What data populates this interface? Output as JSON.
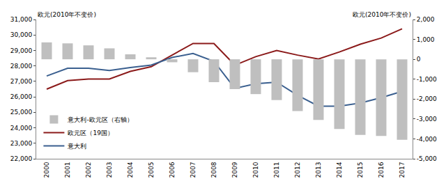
{
  "chart_data": {
    "type": "bar",
    "ylabel": "欧元(2010年不变价)",
    "y2label": "欧元(2010年不变价)",
    "categories": [
      "2000",
      "2001",
      "2002",
      "2003",
      "2004",
      "2005",
      "2006",
      "2007",
      "2008",
      "2009",
      "2010",
      "2011",
      "2012",
      "2013",
      "2014",
      "2015",
      "2016",
      "2017"
    ],
    "series": [
      {
        "name": "意大利-欧元区（右轴）",
        "type": "bar",
        "axis": "y2",
        "color": "#bfbfbf",
        "values": [
          850,
          800,
          700,
          550,
          250,
          100,
          -150,
          -650,
          -1150,
          -1500,
          -1750,
          -2050,
          -2600,
          -3050,
          -3500,
          -3800,
          -3850,
          -4050
        ]
      },
      {
        "name": "欧元区（19国）",
        "type": "line",
        "color": "#8b1a1a",
        "values": [
          26500,
          27050,
          27150,
          27150,
          27650,
          27950,
          28700,
          29450,
          29450,
          28050,
          28600,
          29000,
          28700,
          28450,
          28900,
          29400,
          29800,
          30400
        ]
      },
      {
        "name": "意大利",
        "type": "line",
        "color": "#3a5f8f",
        "values": [
          27350,
          27850,
          27850,
          27700,
          27900,
          28050,
          28550,
          28800,
          28300,
          26550,
          26850,
          26950,
          26100,
          25400,
          25400,
          25600,
          25950,
          26350
        ]
      }
    ],
    "ylim": [
      22000,
      31000
    ],
    "yticks": [
      {
        "value": 22000,
        "label": "22,000"
      },
      {
        "value": 23000,
        "label": "23,000"
      },
      {
        "value": 24000,
        "label": "24,000"
      },
      {
        "value": 25000,
        "label": "25,000"
      },
      {
        "value": 26000,
        "label": "26,000"
      },
      {
        "value": 27000,
        "label": "27,000"
      },
      {
        "value": 28000,
        "label": "28,000"
      },
      {
        "value": 29000,
        "label": "29,000"
      },
      {
        "value": 30000,
        "label": "30,000"
      },
      {
        "value": 31000,
        "label": "31,000"
      }
    ],
    "y2lim": [
      -5000,
      2000
    ],
    "y2ticks": [
      {
        "value": -5000,
        "label": "-5,000"
      },
      {
        "value": -4000,
        "label": "-4,000"
      },
      {
        "value": -3000,
        "label": "-3,000"
      },
      {
        "value": -2000,
        "label": "-2,000"
      },
      {
        "value": -1000,
        "label": "-1,000"
      },
      0,
      {
        "value": 1000,
        "label": "1,000"
      },
      {
        "value": 2000,
        "label": "2,000"
      }
    ],
    "grid": false,
    "legend": "lower left"
  }
}
